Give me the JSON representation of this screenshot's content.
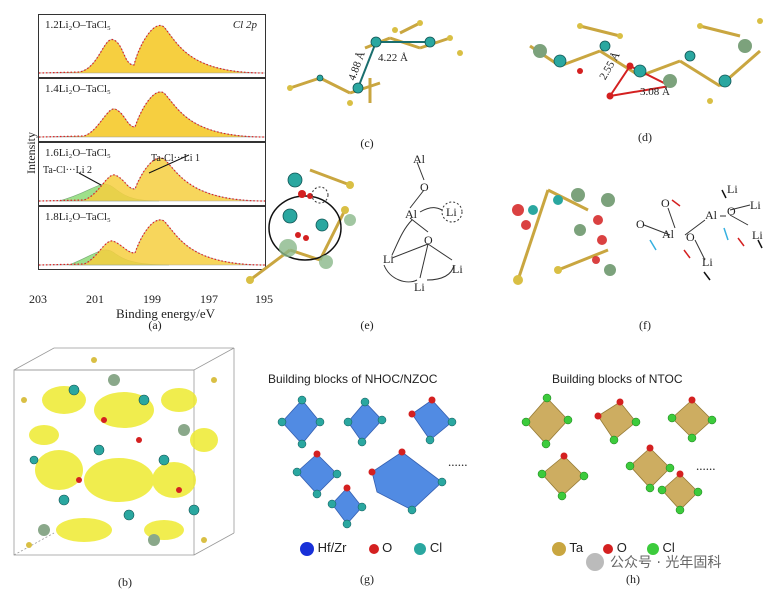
{
  "panel_a": {
    "spectra": [
      "1.2Li₂O–TaCl₅",
      "1.4Li₂O–TaCl₅",
      "1.6Li₂O–TaCl₅",
      "1.8Li₂O–TaCl₅"
    ],
    "region": "Cl 2p",
    "annotation_li1": "Ta-Cl···Li 1",
    "annotation_li2": "Ta-Cl···Li 2",
    "y_label": "Intensity",
    "x_label": "Binding energy/eV",
    "x_ticks": [
      "203",
      "201",
      "199",
      "197",
      "195"
    ],
    "caption": "(a)"
  },
  "panel_c": {
    "dist_1": "4.88 Å",
    "dist_2": "4.22 Å",
    "caption": "(c)"
  },
  "panel_d": {
    "dist_1": "2.55 Å",
    "dist_2": "3.08 Å",
    "caption": "(d)"
  },
  "panel_e": {
    "atoms": {
      "al_top": "Al",
      "o_top": "O",
      "al_mid": "Al",
      "li_circled": "Li",
      "o_mid": "O",
      "li_left": "Li",
      "li_right": "Li",
      "li_bottom": "Li"
    },
    "caption": "(e)"
  },
  "panel_f": {
    "atoms": {
      "o_1": "O",
      "o_2": "O",
      "al_1": "Al",
      "o_3": "O",
      "al_2": "Al",
      "li_1": "Li",
      "o_4": "O",
      "li_2": "Li",
      "li_3": "Li",
      "li_4": "Li"
    },
    "caption": "(f)"
  },
  "panel_b": {
    "caption": "(b)"
  },
  "panel_g": {
    "title": "Building blocks of NHOC/NZOC",
    "ellipsis": "......",
    "legend": [
      "Hf/Zr",
      "O",
      "Cl"
    ],
    "caption": "(g)"
  },
  "panel_h": {
    "title": "Building blocks of NTOC",
    "ellipsis": "......",
    "legend": [
      "Ta",
      "O",
      "Cl"
    ],
    "caption": "(h)"
  },
  "watermark": "公众号 · 光年固科",
  "colors": {
    "ta": "#c9a640",
    "o": "#d42020",
    "cl": "#2aa7a0",
    "cl_green": "#3ccb3c",
    "hfzr": "#1830d8",
    "octa_blue": "#3f7fe0",
    "octa_gold": "#c8a550",
    "fit_yellow": "#f6cf40",
    "fit_green": "#9ee08a",
    "isosurface": "#eeea30"
  }
}
